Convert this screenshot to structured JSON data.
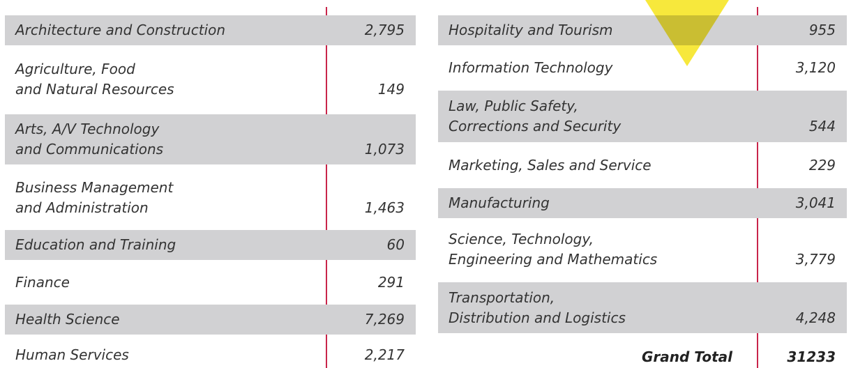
{
  "left": {
    "rows": [
      {
        "label": [
          "Architecture and Construction"
        ],
        "value": "2,795"
      },
      {
        "label": [
          "Agriculture, Food",
          "and Natural Resources"
        ],
        "value": "149"
      },
      {
        "label": [
          "Arts, A/V Technology",
          "and Communications"
        ],
        "value": "1,073"
      },
      {
        "label": [
          "Business Management",
          "and Administration"
        ],
        "value": "1,463"
      },
      {
        "label": [
          "Education and Training"
        ],
        "value": "60"
      },
      {
        "label": [
          "Finance"
        ],
        "value": "291"
      },
      {
        "label": [
          "Health Science"
        ],
        "value": "7,269"
      },
      {
        "label": [
          "Human Services"
        ],
        "value": "2,217"
      }
    ]
  },
  "right": {
    "rows": [
      {
        "label": [
          "Hospitality and Tourism"
        ],
        "value": "955"
      },
      {
        "label": [
          "Information Technology"
        ],
        "value": "3,120"
      },
      {
        "label": [
          "Law, Public Safety,",
          "Corrections and Security"
        ],
        "value": "544"
      },
      {
        "label": [
          "Marketing, Sales and Service"
        ],
        "value": "229"
      },
      {
        "label": [
          "Manufacturing"
        ],
        "value": "3,041"
      },
      {
        "label": [
          "Science, Technology,",
          "Engineering and Mathematics"
        ],
        "value": "3,779"
      },
      {
        "label": [
          "Transportation,",
          "Distribution and Logistics"
        ],
        "value": "4,248"
      }
    ],
    "total": {
      "label": "Grand Total",
      "value": "31233"
    }
  }
}
